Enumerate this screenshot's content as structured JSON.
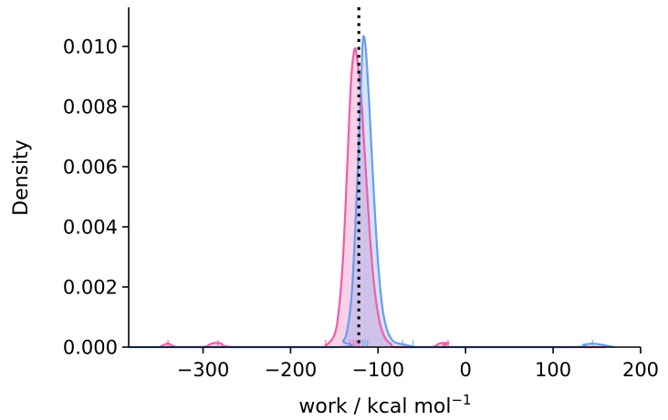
{
  "chart_data": {
    "type": "area",
    "title": "",
    "xlabel": "work / kcal mol",
    "xlabel_superscript": "−1",
    "ylabel": "Density",
    "xlim": [
      -385,
      200
    ],
    "ylim": [
      0,
      0.0113
    ],
    "xticks": [
      -300,
      -200,
      -100,
      0,
      100,
      200
    ],
    "xtick_labels": [
      "−300",
      "−200",
      "−100",
      "0",
      "100",
      "200"
    ],
    "yticks": [
      0,
      0.002,
      0.004,
      0.006,
      0.008,
      0.01
    ],
    "ytick_labels": [
      "0.000",
      "0.002",
      "0.004",
      "0.006",
      "0.008",
      "0.010"
    ],
    "grid": false,
    "legend": false,
    "vline": {
      "x": -122,
      "style": "dotted",
      "color": "#000000"
    },
    "series": [
      {
        "color": "#ee5ea8",
        "fill_color": "#e86cb4",
        "peak_x": -127,
        "peak_y": 0.0099,
        "curve_x": [
          -350,
          -340,
          -330,
          -300,
          -290,
          -280,
          -265,
          -170,
          -160,
          -150,
          -145,
          -140,
          -135,
          -131,
          -127,
          -124,
          -120,
          -116,
          -110,
          -105,
          -100,
          -95,
          -90,
          -85,
          -80,
          -40,
          -30,
          -20,
          -10,
          160
        ],
        "curve_y": [
          0.0,
          0.00012,
          0.0,
          0.0,
          0.00012,
          0.00013,
          0.0,
          0.0,
          5e-05,
          0.0004,
          0.0012,
          0.003,
          0.0062,
          0.0088,
          0.0099,
          0.0096,
          0.0086,
          0.0068,
          0.004,
          0.0022,
          0.0011,
          0.0005,
          0.00022,
          0.0001,
          0.0,
          0.0,
          0.00012,
          0.00013,
          0.0,
          0.0
        ],
        "rug_x": [
          -340,
          -283,
          -160,
          -132,
          -128,
          -125,
          -122,
          -20
        ]
      },
      {
        "color": "#6a9cee",
        "fill_color": "#7aa6ee",
        "peak_x": -117,
        "peak_y": 0.0103,
        "curve_x": [
          -385,
          -150,
          -140,
          -135,
          -130,
          -126,
          -122,
          -119,
          -117,
          -114,
          -110,
          -105,
          -100,
          -95,
          -90,
          -85,
          -80,
          -70,
          -60,
          -50,
          120,
          135,
          145,
          155,
          170
        ],
        "curve_y": [
          0.0,
          0.0,
          0.0002,
          0.0006,
          0.0018,
          0.004,
          0.0068,
          0.0092,
          0.0103,
          0.0099,
          0.008,
          0.0052,
          0.0028,
          0.0013,
          0.0006,
          0.00028,
          0.00015,
          8e-05,
          2e-05,
          0.0,
          0.0,
          8e-05,
          0.00012,
          8e-05,
          0.0
        ],
        "rug_x": [
          -118,
          -115,
          -112,
          -72,
          -60,
          145
        ]
      }
    ]
  }
}
